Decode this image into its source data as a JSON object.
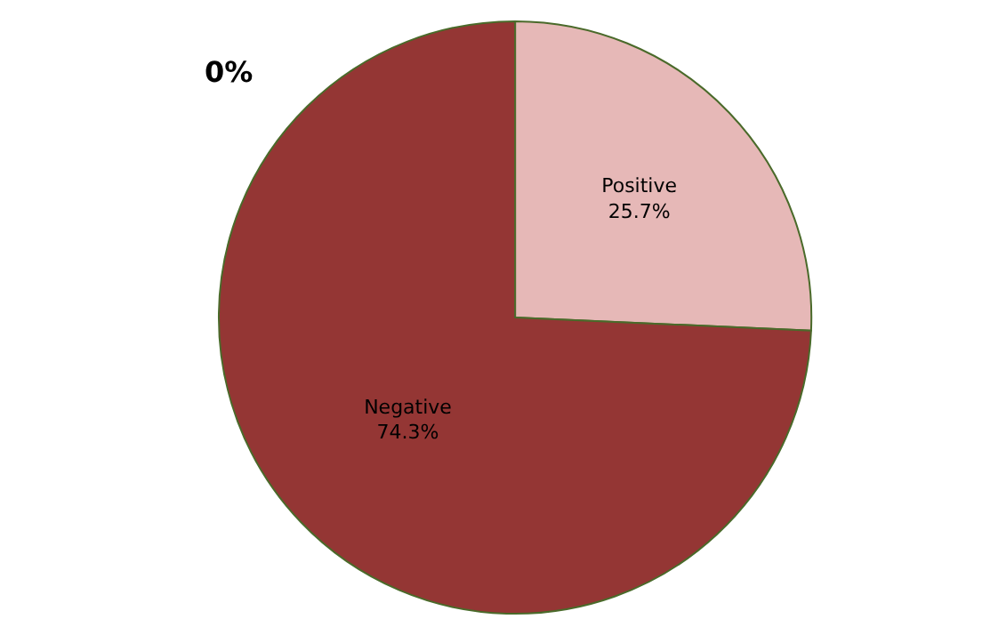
{
  "chart_data": {
    "type": "pie",
    "categories": [
      "Positive",
      "Negative"
    ],
    "values": [
      25.7,
      74.3
    ],
    "colors": [
      "#e6b8b7",
      "#943634"
    ],
    "value_labels": [
      "25.7%",
      "74.3%"
    ],
    "annotations": [
      "0%"
    ],
    "legend": false
  }
}
